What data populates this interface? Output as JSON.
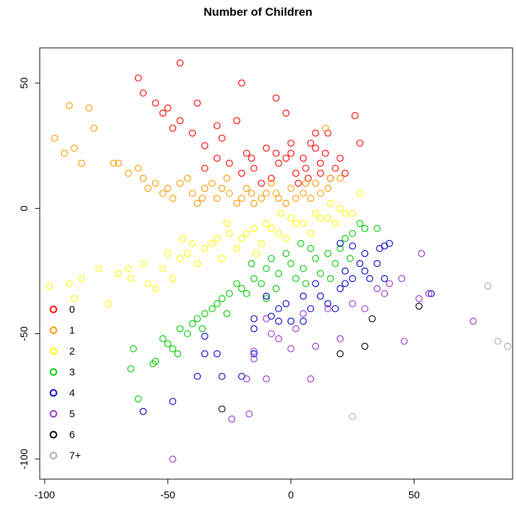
{
  "chart_data": {
    "type": "scatter",
    "title": "Number of Children",
    "xlabel": "",
    "ylabel": "",
    "xlim": [
      -102,
      90
    ],
    "ylim": [
      -108,
      64
    ],
    "x_ticks": [
      -100,
      -50,
      0,
      50
    ],
    "y_ticks": [
      50,
      0,
      -50,
      -100
    ],
    "grid": false,
    "legend": {
      "position": "bottom-left",
      "entries": [
        {
          "label": "0",
          "color": "#ff0000"
        },
        {
          "label": "1",
          "color": "#ff9900"
        },
        {
          "label": "2",
          "color": "#ffff00"
        },
        {
          "label": "3",
          "color": "#00cc00"
        },
        {
          "label": "4",
          "color": "#0000cc"
        },
        {
          "label": "5",
          "color": "#9933cc"
        },
        {
          "label": "6",
          "color": "#000000"
        },
        {
          "label": "7+",
          "color": "#aaaaaa"
        }
      ]
    },
    "series": [
      {
        "name": "0",
        "color": "#ff0000",
        "points": [
          [
            -45,
            58
          ],
          [
            -62,
            52
          ],
          [
            -20,
            50
          ],
          [
            -60,
            46
          ],
          [
            -6,
            44
          ],
          [
            -55,
            42
          ],
          [
            -38,
            42
          ],
          [
            -50,
            40
          ],
          [
            -52,
            38
          ],
          [
            -2,
            38
          ],
          [
            -45,
            35
          ],
          [
            -30,
            33
          ],
          [
            26,
            37
          ],
          [
            10,
            30
          ],
          [
            -22,
            35
          ],
          [
            -40,
            30
          ],
          [
            -48,
            32
          ],
          [
            -35,
            25
          ],
          [
            -28,
            28
          ],
          [
            15,
            30
          ],
          [
            28,
            26
          ],
          [
            -18,
            22
          ],
          [
            -10,
            24
          ],
          [
            0,
            22
          ],
          [
            5,
            20
          ],
          [
            12,
            18
          ],
          [
            18,
            16
          ],
          [
            -5,
            18
          ],
          [
            -15,
            16
          ],
          [
            -25,
            18
          ],
          [
            8,
            26
          ],
          [
            2,
            14
          ],
          [
            -8,
            12
          ],
          [
            14,
            22
          ],
          [
            20,
            20
          ],
          [
            -30,
            20
          ],
          [
            -12,
            10
          ],
          [
            6,
            16
          ],
          [
            16,
            12
          ],
          [
            -2,
            20
          ],
          [
            10,
            24
          ],
          [
            -20,
            14
          ],
          [
            3,
            10
          ],
          [
            -6,
            22
          ],
          [
            12,
            14
          ],
          [
            -35,
            16
          ],
          [
            22,
            14
          ],
          [
            -16,
            20
          ],
          [
            0,
            26
          ],
          [
            7,
            12
          ]
        ]
      },
      {
        "name": "1",
        "color": "#ff9900",
        "points": [
          [
            -90,
            41
          ],
          [
            -82,
            40
          ],
          [
            -80,
            32
          ],
          [
            -96,
            28
          ],
          [
            -88,
            24
          ],
          [
            -92,
            22
          ],
          [
            -85,
            18
          ],
          [
            -72,
            18
          ],
          [
            -66,
            14
          ],
          [
            -60,
            12
          ],
          [
            -55,
            10
          ],
          [
            -50,
            8
          ],
          [
            -45,
            10
          ],
          [
            -40,
            6
          ],
          [
            -35,
            8
          ],
          [
            -30,
            4
          ],
          [
            -25,
            6
          ],
          [
            -20,
            4
          ],
          [
            -15,
            2
          ],
          [
            -10,
            6
          ],
          [
            -5,
            4
          ],
          [
            0,
            8
          ],
          [
            5,
            6
          ],
          [
            10,
            10
          ],
          [
            15,
            8
          ],
          [
            20,
            12
          ],
          [
            -62,
            16
          ],
          [
            -58,
            8
          ],
          [
            -48,
            4
          ],
          [
            -42,
            12
          ],
          [
            -38,
            2
          ],
          [
            -32,
            10
          ],
          [
            -28,
            8
          ],
          [
            -22,
            2
          ],
          [
            -18,
            8
          ],
          [
            -12,
            4
          ],
          [
            -8,
            10
          ],
          [
            -2,
            2
          ],
          [
            2,
            4
          ],
          [
            6,
            10
          ],
          [
            12,
            6
          ],
          [
            -70,
            18
          ],
          [
            -52,
            6
          ],
          [
            -26,
            12
          ],
          [
            -6,
            6
          ],
          [
            8,
            4
          ],
          [
            14,
            32
          ],
          [
            16,
            12
          ],
          [
            -16,
            6
          ],
          [
            -36,
            4
          ]
        ]
      },
      {
        "name": "2",
        "color": "#ffff00",
        "points": [
          [
            -98,
            -31
          ],
          [
            -90,
            -30
          ],
          [
            -85,
            -28
          ],
          [
            -78,
            -24
          ],
          [
            -74,
            -38
          ],
          [
            -70,
            -26
          ],
          [
            -65,
            -28
          ],
          [
            -60,
            -22
          ],
          [
            -55,
            -32
          ],
          [
            -50,
            -18
          ],
          [
            -45,
            -20
          ],
          [
            -40,
            -14
          ],
          [
            -35,
            -16
          ],
          [
            -30,
            -12
          ],
          [
            -25,
            -10
          ],
          [
            -20,
            -12
          ],
          [
            -15,
            -8
          ],
          [
            -10,
            -6
          ],
          [
            -5,
            -10
          ],
          [
            0,
            -4
          ],
          [
            5,
            -6
          ],
          [
            10,
            -2
          ],
          [
            15,
            -4
          ],
          [
            20,
            0
          ],
          [
            25,
            -2
          ],
          [
            28,
            6
          ],
          [
            -52,
            -24
          ],
          [
            -48,
            -28
          ],
          [
            -42,
            -18
          ],
          [
            -38,
            -22
          ],
          [
            -32,
            -14
          ],
          [
            -28,
            -20
          ],
          [
            -22,
            -16
          ],
          [
            -18,
            -10
          ],
          [
            -12,
            -14
          ],
          [
            -8,
            -8
          ],
          [
            -2,
            -12
          ],
          [
            2,
            -6
          ],
          [
            8,
            -10
          ],
          [
            12,
            -4
          ],
          [
            18,
            -6
          ],
          [
            22,
            -2
          ],
          [
            -88,
            -36
          ],
          [
            -66,
            -24
          ],
          [
            -58,
            -30
          ],
          [
            -44,
            -12
          ],
          [
            -26,
            -6
          ],
          [
            -4,
            -2
          ],
          [
            16,
            2
          ],
          [
            -14,
            -18
          ]
        ]
      },
      {
        "name": "3",
        "color": "#00cc00",
        "points": [
          [
            -62,
            -76
          ],
          [
            -65,
            -64
          ],
          [
            -64,
            -56
          ],
          [
            -55,
            -61
          ],
          [
            -52,
            -52
          ],
          [
            -50,
            -54
          ],
          [
            -48,
            -56
          ],
          [
            -45,
            -48
          ],
          [
            -40,
            -46
          ],
          [
            -35,
            -42
          ],
          [
            -30,
            -38
          ],
          [
            -25,
            -34
          ],
          [
            -20,
            -32
          ],
          [
            -15,
            -28
          ],
          [
            -10,
            -24
          ],
          [
            -5,
            -26
          ],
          [
            0,
            -22
          ],
          [
            5,
            -24
          ],
          [
            10,
            -20
          ],
          [
            15,
            -18
          ],
          [
            20,
            -16
          ],
          [
            25,
            -10
          ],
          [
            30,
            -8
          ],
          [
            35,
            -8
          ],
          [
            -42,
            -50
          ],
          [
            -38,
            -44
          ],
          [
            -32,
            -40
          ],
          [
            -28,
            -36
          ],
          [
            -22,
            -30
          ],
          [
            -18,
            -34
          ],
          [
            -12,
            -30
          ],
          [
            -8,
            -20
          ],
          [
            -2,
            -18
          ],
          [
            2,
            -28
          ],
          [
            8,
            -16
          ],
          [
            12,
            -26
          ],
          [
            18,
            -22
          ],
          [
            22,
            -12
          ],
          [
            28,
            -6
          ],
          [
            -46,
            -58
          ],
          [
            -36,
            -48
          ],
          [
            -16,
            -22
          ],
          [
            -6,
            -32
          ],
          [
            6,
            -30
          ],
          [
            16,
            -28
          ],
          [
            24,
            -20
          ],
          [
            -26,
            -42
          ],
          [
            -10,
            -36
          ],
          [
            4,
            -14
          ],
          [
            -56,
            -62
          ]
        ]
      },
      {
        "name": "4",
        "color": "#0000cc",
        "points": [
          [
            -60,
            -81
          ],
          [
            -48,
            -77
          ],
          [
            -38,
            -67
          ],
          [
            -28,
            -67
          ],
          [
            -20,
            -67
          ],
          [
            -35,
            -58
          ],
          [
            -30,
            -58
          ],
          [
            -35,
            -51
          ],
          [
            -15,
            -58
          ],
          [
            -15,
            -48
          ],
          [
            -15,
            -44
          ],
          [
            -5,
            -40
          ],
          [
            -10,
            -35
          ],
          [
            -5,
            -45
          ],
          [
            0,
            -45
          ],
          [
            5,
            -45
          ],
          [
            8,
            -40
          ],
          [
            12,
            -35
          ],
          [
            15,
            -38
          ],
          [
            20,
            -32
          ],
          [
            22,
            -25
          ],
          [
            25,
            -28
          ],
          [
            28,
            -22
          ],
          [
            30,
            -25
          ],
          [
            32,
            -28
          ],
          [
            35,
            -22
          ],
          [
            38,
            -15
          ],
          [
            40,
            -14
          ],
          [
            36,
            -16
          ],
          [
            30,
            -18
          ],
          [
            25,
            -15
          ],
          [
            20,
            -14
          ],
          [
            22,
            -30
          ],
          [
            10,
            -30
          ],
          [
            5,
            -35
          ],
          [
            -2,
            -38
          ],
          [
            -8,
            -43
          ],
          [
            38,
            -28
          ],
          [
            57,
            -34
          ],
          [
            18,
            -40
          ]
        ]
      },
      {
        "name": "5",
        "color": "#9933cc",
        "points": [
          [
            -48,
            -100
          ],
          [
            -24,
            -84
          ],
          [
            -17,
            -82
          ],
          [
            -18,
            -68
          ],
          [
            -10,
            -68
          ],
          [
            8,
            -68
          ],
          [
            -15,
            -57
          ],
          [
            -15,
            -60
          ],
          [
            0,
            -56
          ],
          [
            -8,
            -50
          ],
          [
            -5,
            -52
          ],
          [
            5,
            -42
          ],
          [
            15,
            -40
          ],
          [
            25,
            -38
          ],
          [
            38,
            -34
          ],
          [
            40,
            -30
          ],
          [
            45,
            -28
          ],
          [
            52,
            -36
          ],
          [
            56,
            -34
          ],
          [
            46,
            -53
          ],
          [
            74,
            -45
          ],
          [
            53,
            -18
          ],
          [
            35,
            -32
          ],
          [
            30,
            -40
          ],
          [
            20,
            -52
          ],
          [
            10,
            -55
          ],
          [
            -10,
            -44
          ],
          [
            2,
            -48
          ]
        ]
      },
      {
        "name": "6",
        "color": "#000000",
        "points": [
          [
            -28,
            -80
          ],
          [
            20,
            -58
          ],
          [
            30,
            -55
          ],
          [
            33,
            -44
          ],
          [
            52,
            -39
          ]
        ]
      },
      {
        "name": "7+",
        "color": "#aaaaaa",
        "points": [
          [
            25,
            -83
          ],
          [
            80,
            -31
          ],
          [
            84,
            -53
          ],
          [
            88,
            -55
          ]
        ]
      }
    ]
  }
}
